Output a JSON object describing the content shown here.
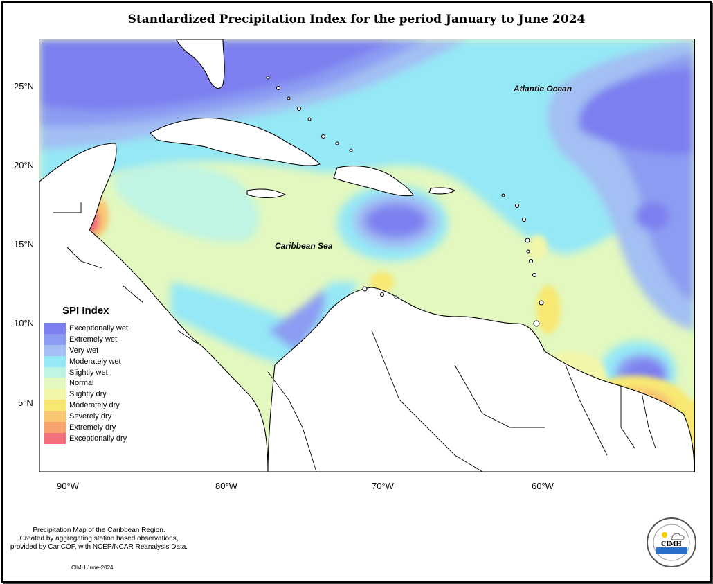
{
  "title": "Standardized Precipitation Index for the period January to June 2024",
  "map": {
    "ocean_labels": {
      "atlantic": "Atlantic Ocean",
      "caribbean": "Caribbean Sea"
    },
    "lat_ticks": [
      "25°N",
      "20°N",
      "15°N",
      "10°N",
      "5°N"
    ],
    "lon_ticks": [
      "90°W",
      "80°W",
      "70°W",
      "60°W"
    ],
    "extent": {
      "lon": [
        -92,
        -50
      ],
      "lat": [
        1.3,
        28.6
      ]
    }
  },
  "legend": {
    "title": "SPI Index",
    "items": [
      {
        "label": "Exceptionally wet",
        "color": "#7d7ff0"
      },
      {
        "label": "Extremely wet",
        "color": "#8c9cf2"
      },
      {
        "label": "Very wet",
        "color": "#a3bff3"
      },
      {
        "label": "Moderately wet",
        "color": "#95e8f6"
      },
      {
        "label": "Slightly wet",
        "color": "#bff5e4"
      },
      {
        "label": "Normal",
        "color": "#e2f8bf"
      },
      {
        "label": "Slightly dry",
        "color": "#f2f6a9"
      },
      {
        "label": "Moderately dry",
        "color": "#f8e873"
      },
      {
        "label": "Severely dry",
        "color": "#f8c673"
      },
      {
        "label": "Extremely dry",
        "color": "#f7a36e"
      },
      {
        "label": "Exceptionally dry",
        "color": "#f3707a"
      }
    ]
  },
  "credits": {
    "line1": "Precipitation Map of the Caribbean Region.",
    "line2": "Created by aggregating station based observations,",
    "line3": "provided by CariCOF, with NCEP/NCAR Reanalysis Data.",
    "date": "CIMH June-2024"
  },
  "logo": {
    "text": "CIMH"
  }
}
